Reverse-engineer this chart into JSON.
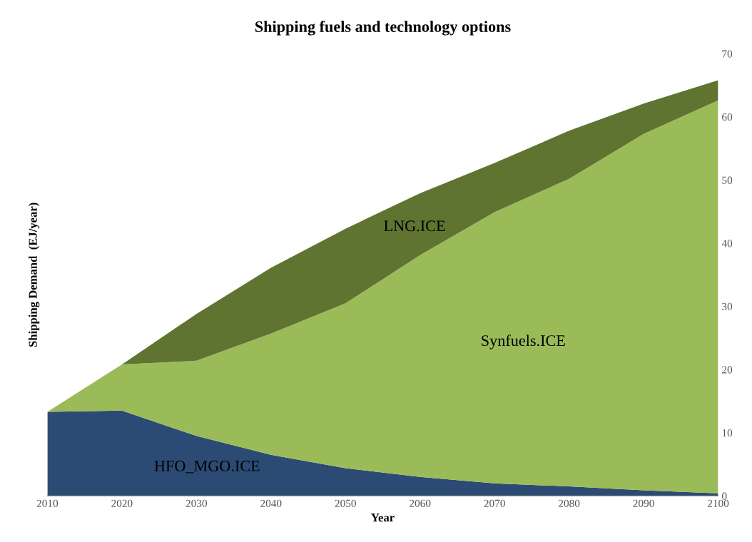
{
  "chart_data": {
    "type": "area",
    "stacked": true,
    "title": "Shipping fuels and technology options",
    "xlabel": "Year",
    "ylabel": "Shipping Demand  (EJ/year)",
    "x": [
      2010,
      2020,
      2030,
      2040,
      2050,
      2060,
      2070,
      2080,
      2090,
      2100
    ],
    "series": [
      {
        "name": "HFO_MGO.ICE",
        "color": "#2c4b74",
        "values": [
          13.3,
          13.5,
          9.5,
          6.5,
          4.4,
          3.0,
          2.0,
          1.5,
          0.9,
          0.4
        ]
      },
      {
        "name": "Synfuels.ICE",
        "color": "#9bbb59",
        "values": [
          0,
          7.3,
          11.9,
          19.2,
          26.1,
          35.1,
          42.9,
          48.7,
          56.4,
          62.2
        ]
      },
      {
        "name": "LNG.ICE",
        "color": "#5f7430",
        "values": [
          0,
          0,
          7.4,
          10.4,
          11.8,
          9.8,
          7.8,
          7.6,
          4.8,
          3.2
        ]
      }
    ],
    "xlim": [
      2010,
      2100
    ],
    "xticks": [
      2010,
      2020,
      2030,
      2040,
      2050,
      2060,
      2070,
      2080,
      2090,
      2100
    ],
    "ylim": [
      0,
      70
    ],
    "yticks": [
      0,
      10,
      20,
      30,
      40,
      50,
      60,
      70
    ],
    "grid": false,
    "legend": false
  }
}
